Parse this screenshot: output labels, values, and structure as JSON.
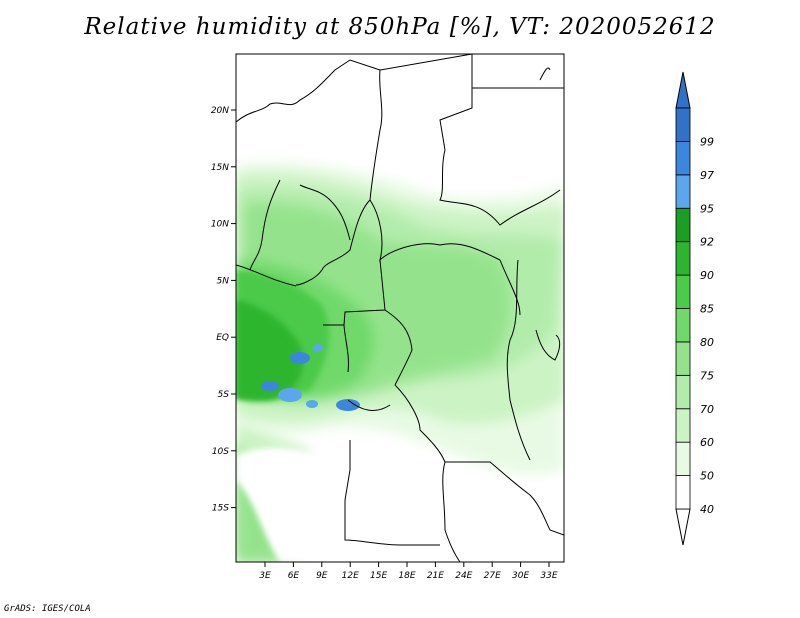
{
  "title": "Relative humidity at 850hPa [%], VT: 2020052612",
  "footer": "GrADS: IGES/COLA",
  "map": {
    "lat_labels": [
      "20N",
      "15N",
      "10N",
      "5N",
      "EQ",
      "5S",
      "10S",
      "15S"
    ],
    "lon_labels": [
      "3E",
      "6E",
      "9E",
      "12E",
      "15E",
      "18E",
      "21E",
      "24E",
      "27E",
      "30E",
      "33E"
    ]
  },
  "colorbar": {
    "top_arrow_color": "#2f72c8",
    "bottom_arrow_color": "#ffffff",
    "segments": [
      {
        "label": "40",
        "color": "#ffffff"
      },
      {
        "label": "50",
        "color": "#e8fae4"
      },
      {
        "label": "60",
        "color": "#ccf3c4"
      },
      {
        "label": "70",
        "color": "#b2ecab"
      },
      {
        "label": "75",
        "color": "#94e38c"
      },
      {
        "label": "80",
        "color": "#6fd96a"
      },
      {
        "label": "85",
        "color": "#4cca4a"
      },
      {
        "label": "90",
        "color": "#2eb52f"
      },
      {
        "label": "92",
        "color": "#1c9e24"
      },
      {
        "label": "95",
        "color": "#5aa7ee"
      },
      {
        "label": "97",
        "color": "#3b86de"
      },
      {
        "label": "99",
        "color": "#2f72c8"
      }
    ]
  }
}
